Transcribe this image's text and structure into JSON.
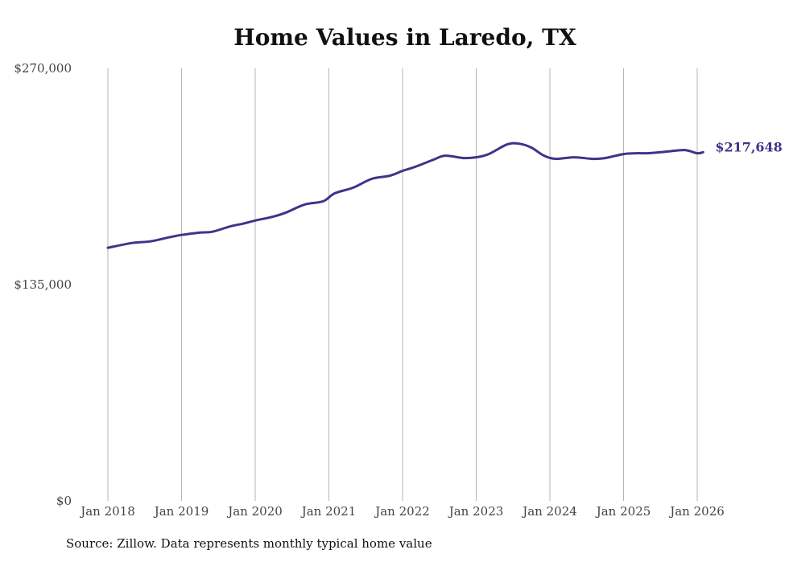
{
  "colors": {
    "series": "#3d3589",
    "grid": "#b5b5b5",
    "text": "#444444"
  },
  "chart_data": {
    "type": "line",
    "title": "Home Values in Laredo, TX",
    "xlabel": "",
    "ylabel": "",
    "ylim": [
      0,
      270000
    ],
    "xlim": [
      2018.0,
      2026.0
    ],
    "y_ticks": [
      {
        "value": 0,
        "label": "$0"
      },
      {
        "value": 135000,
        "label": "$135,000"
      },
      {
        "value": 270000,
        "label": "$270,000"
      }
    ],
    "x_ticks": [
      {
        "value": 2018,
        "label": "Jan 2018"
      },
      {
        "value": 2019,
        "label": "Jan 2019"
      },
      {
        "value": 2020,
        "label": "Jan 2020"
      },
      {
        "value": 2021,
        "label": "Jan 2021"
      },
      {
        "value": 2022,
        "label": "Jan 2022"
      },
      {
        "value": 2023,
        "label": "Jan 2023"
      },
      {
        "value": 2024,
        "label": "Jan 2024"
      },
      {
        "value": 2025,
        "label": "Jan 2025"
      },
      {
        "value": 2026,
        "label": "Jan 2026"
      }
    ],
    "grid": "vertical",
    "series": [
      {
        "name": "Typical home value",
        "x": [
          2018.0,
          2018.33,
          2018.58,
          2018.83,
          2019.0,
          2019.25,
          2019.42,
          2019.67,
          2019.83,
          2020.0,
          2020.25,
          2020.42,
          2020.67,
          2020.92,
          2021.08,
          2021.33,
          2021.58,
          2021.83,
          2022.0,
          2022.17,
          2022.42,
          2022.58,
          2022.83,
          2023.0,
          2023.17,
          2023.42,
          2023.58,
          2023.75,
          2023.92,
          2024.08,
          2024.33,
          2024.58,
          2024.75,
          2025.0,
          2025.17,
          2025.33,
          2025.58,
          2025.83,
          2026.0,
          2026.08
        ],
        "values": [
          158000,
          161000,
          162000,
          164500,
          166000,
          167500,
          168000,
          171500,
          173000,
          175000,
          177500,
          180000,
          185000,
          187000,
          192000,
          195500,
          201000,
          203000,
          206000,
          208500,
          213000,
          215500,
          214000,
          214500,
          216500,
          222500,
          223000,
          220500,
          215500,
          213500,
          214500,
          213500,
          214000,
          216500,
          217000,
          217000,
          218000,
          219000,
          217000,
          217648
        ]
      }
    ],
    "end_label": "$217,648"
  },
  "footer": {
    "source": "Source: Zillow. Data represents monthly typical home value"
  }
}
